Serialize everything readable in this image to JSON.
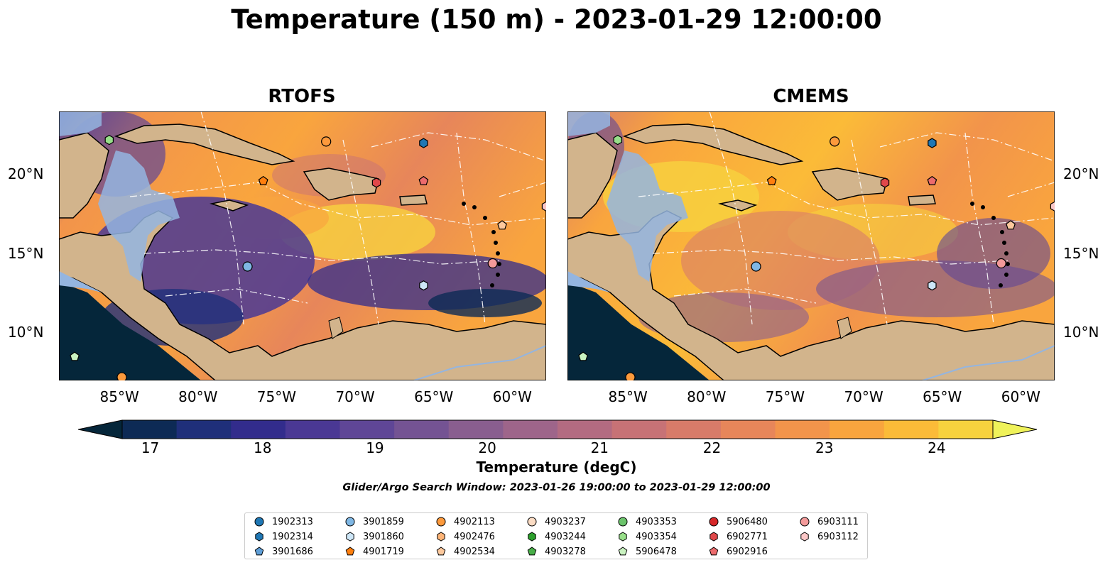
{
  "title": "Temperature (150 m) - 2023-01-29 12:00:00",
  "panels": [
    {
      "title": "RTOFS"
    },
    {
      "title": "CMEMS"
    }
  ],
  "axes": {
    "lon_ticks": [
      "85°W",
      "80°W",
      "75°W",
      "70°W",
      "65°W",
      "60°W"
    ],
    "lat_ticks": [
      "20°N",
      "15°N",
      "10°N"
    ],
    "lon_range": [
      -89,
      -58
    ],
    "lat_range": [
      7,
      24
    ]
  },
  "colorbar": {
    "label": "Temperature (degC)",
    "ticks": [
      "17",
      "18",
      "19",
      "20",
      "21",
      "22",
      "23",
      "24"
    ],
    "range": [
      16.75,
      24.5
    ],
    "colors": [
      "#05263a",
      "#0d2a55",
      "#1f2f7a",
      "#322c8c",
      "#4a3894",
      "#5f4696",
      "#745393",
      "#895e8f",
      "#9e658a",
      "#b36b81",
      "#c77276",
      "#d87b69",
      "#e7865a",
      "#f2944b",
      "#f9a53e",
      "#fbbb38",
      "#f7d23e",
      "#eff25a"
    ]
  },
  "search_window": "Glider/Argo Search Window: 2023-01-26 19:00:00 to 2023-01-29 12:00:00",
  "colors": {
    "land": "#d2b48c",
    "shelf": "#94b5e0",
    "deep_dark": "#05263a"
  },
  "legend": [
    {
      "id": "1902313",
      "shape": "circle",
      "color": "#1f77b4"
    },
    {
      "id": "1902314",
      "shape": "hexagon",
      "color": "#1f77b4"
    },
    {
      "id": "3901686",
      "shape": "pentagon",
      "color": "#5f9fd8"
    },
    {
      "id": "3901859",
      "shape": "circle",
      "color": "#7fb7e4"
    },
    {
      "id": "3901860",
      "shape": "hexagon",
      "color": "#cde6f7"
    },
    {
      "id": "4901719",
      "shape": "pentagon",
      "color": "#ff7f0e"
    },
    {
      "id": "4902113",
      "shape": "circle",
      "color": "#fd9a3c"
    },
    {
      "id": "4902476",
      "shape": "hexagon",
      "color": "#fdb477"
    },
    {
      "id": "4902534",
      "shape": "pentagon",
      "color": "#fdc99d"
    },
    {
      "id": "4903237",
      "shape": "circle",
      "color": "#fbdcc4"
    },
    {
      "id": "4903244",
      "shape": "hexagon",
      "color": "#2ca02c"
    },
    {
      "id": "4903278",
      "shape": "pentagon",
      "color": "#47ad47"
    },
    {
      "id": "4903353",
      "shape": "circle",
      "color": "#6cc46c"
    },
    {
      "id": "4903354",
      "shape": "hexagon",
      "color": "#98df8a"
    },
    {
      "id": "5906478",
      "shape": "pentagon",
      "color": "#c9f2c0"
    },
    {
      "id": "5906480",
      "shape": "circle",
      "color": "#d62728"
    },
    {
      "id": "6902771",
      "shape": "hexagon",
      "color": "#e0484a"
    },
    {
      "id": "6902916",
      "shape": "pentagon",
      "color": "#ec6b6d"
    },
    {
      "id": "6903111",
      "shape": "circle",
      "color": "#f39a9a"
    },
    {
      "id": "6903112",
      "shape": "hexagon",
      "color": "#fac6c6"
    }
  ],
  "markers": [
    {
      "lon": -85.8,
      "lat": 22.2,
      "shape": "hexagon",
      "color": "#98df8a"
    },
    {
      "lon": -72.0,
      "lat": 22.1,
      "shape": "circle",
      "color": "#fd9a3c"
    },
    {
      "lon": -65.8,
      "lat": 22.0,
      "shape": "hexagon",
      "color": "#1f77b4"
    },
    {
      "lon": -76.0,
      "lat": 19.6,
      "shape": "pentagon",
      "color": "#ff7f0e"
    },
    {
      "lon": -68.8,
      "lat": 19.5,
      "shape": "hexagon",
      "color": "#e0484a"
    },
    {
      "lon": -65.8,
      "lat": 19.6,
      "shape": "pentagon",
      "color": "#ec6b6d"
    },
    {
      "lon": -58.0,
      "lat": 18.0,
      "shape": "hexagon",
      "color": "#fac6c6"
    },
    {
      "lon": -60.8,
      "lat": 16.8,
      "shape": "pentagon",
      "color": "#fdc99d"
    },
    {
      "lon": -77.0,
      "lat": 14.2,
      "shape": "circle",
      "color": "#7fb7e4"
    },
    {
      "lon": -61.4,
      "lat": 14.4,
      "shape": "circle",
      "color": "#f39a9a"
    },
    {
      "lon": -65.8,
      "lat": 13.0,
      "shape": "hexagon",
      "color": "#cde6f7"
    },
    {
      "lon": -88.0,
      "lat": 8.5,
      "shape": "pentagon",
      "color": "#c9f2c0"
    },
    {
      "lon": -85.0,
      "lat": 7.2,
      "shape": "circle",
      "color": "#fd9a3c"
    }
  ]
}
